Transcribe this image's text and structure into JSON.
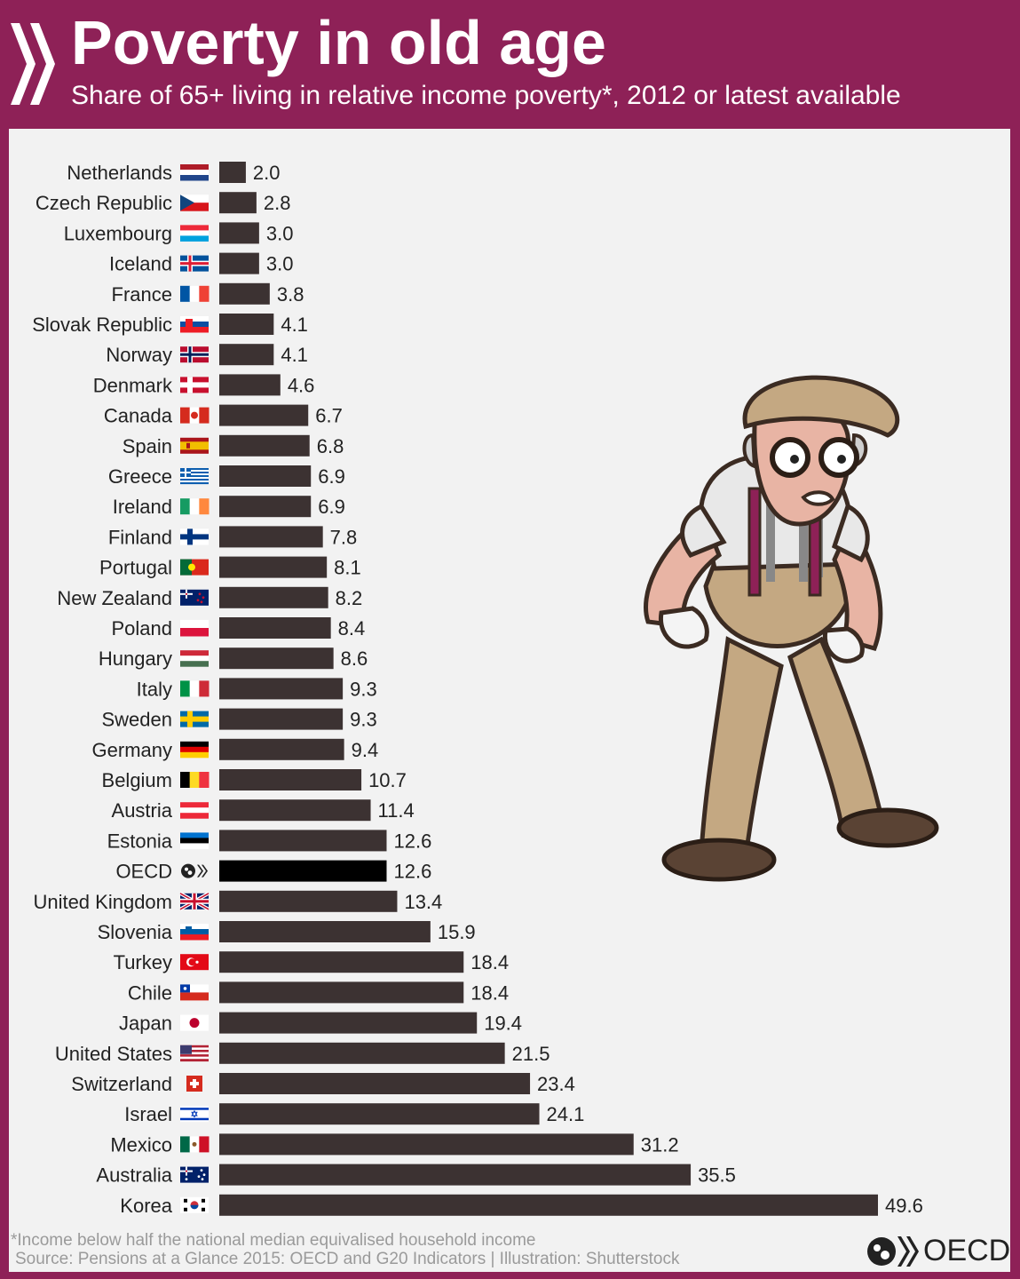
{
  "header": {
    "title": "Poverty in old age",
    "subtitle": "Share of 65+ living in relative income poverty*, 2012 or latest available"
  },
  "footer": {
    "footnote": "*Income below half the national median equivalised household income",
    "source": "Source: Pensions at a Glance 2015: OECD and G20 Indicators | Illustration: Shutterstock",
    "logo_text": "OECD"
  },
  "colors": {
    "header_bg": "#8e2157",
    "panel_bg": "#f2f2f2",
    "bar": "#3c3232",
    "bar_highlight": "#000000"
  },
  "chart_data": {
    "type": "bar",
    "orientation": "horizontal",
    "title": "Poverty in old age",
    "subtitle": "Share of 65+ living in relative income poverty*, 2012 or latest available",
    "xlabel": "",
    "ylabel": "",
    "xlim": [
      0,
      50
    ],
    "grid": false,
    "legend": "none",
    "highlight": "OECD",
    "categories": [
      "Netherlands",
      "Czech Republic",
      "Luxembourg",
      "Iceland",
      "France",
      "Slovak Republic",
      "Norway",
      "Denmark",
      "Canada",
      "Spain",
      "Greece",
      "Ireland",
      "Finland",
      "Portugal",
      "New Zealand",
      "Poland",
      "Hungary",
      "Italy",
      "Sweden",
      "Germany",
      "Belgium",
      "Austria",
      "Estonia",
      "OECD",
      "United Kingdom",
      "Slovenia",
      "Turkey",
      "Chile",
      "Japan",
      "United States",
      "Switzerland",
      "Israel",
      "Mexico",
      "Australia",
      "Korea"
    ],
    "values": [
      2.0,
      2.8,
      3.0,
      3.0,
      3.8,
      4.1,
      4.1,
      4.6,
      6.7,
      6.8,
      6.9,
      6.9,
      7.8,
      8.1,
      8.2,
      8.4,
      8.6,
      9.3,
      9.3,
      9.4,
      10.7,
      11.4,
      12.6,
      12.6,
      13.4,
      15.9,
      18.4,
      18.4,
      19.4,
      21.5,
      23.4,
      24.1,
      31.2,
      35.5,
      49.6
    ],
    "value_labels": [
      "2.0",
      "2.8",
      "3.0",
      "3.0",
      "3.8",
      "4.1",
      "4.1",
      "4.6",
      "6.7",
      "6.8",
      "6.9",
      "6.9",
      "7.8",
      "8.1",
      "8.2",
      "8.4",
      "8.6",
      "9.3",
      "9.3",
      "9.4",
      "10.7",
      "11.4",
      "12.6",
      "12.6",
      "13.4",
      "15.9",
      "18.4",
      "18.4",
      "19.4",
      "21.5",
      "23.4",
      "24.1",
      "31.2",
      "35.5",
      "49.6"
    ],
    "flags": [
      "flag-netherlands",
      "flag-czech-republic",
      "flag-luxembourg",
      "flag-iceland",
      "flag-france",
      "flag-slovak-republic",
      "flag-norway",
      "flag-denmark",
      "flag-canada",
      "flag-spain",
      "flag-greece",
      "flag-ireland",
      "flag-finland",
      "flag-portugal",
      "flag-new-zealand",
      "flag-poland",
      "flag-hungary",
      "flag-italy",
      "flag-sweden",
      "flag-germany",
      "flag-belgium",
      "flag-austria",
      "flag-estonia",
      "oecd-logo-icon",
      "flag-united-kingdom",
      "flag-slovenia",
      "flag-turkey",
      "flag-chile",
      "flag-japan",
      "flag-united-states",
      "flag-switzerland",
      "flag-israel",
      "flag-mexico",
      "flag-australia",
      "flag-korea"
    ]
  },
  "illustration": {
    "icon": "old-man-empty-pockets-illustration"
  }
}
